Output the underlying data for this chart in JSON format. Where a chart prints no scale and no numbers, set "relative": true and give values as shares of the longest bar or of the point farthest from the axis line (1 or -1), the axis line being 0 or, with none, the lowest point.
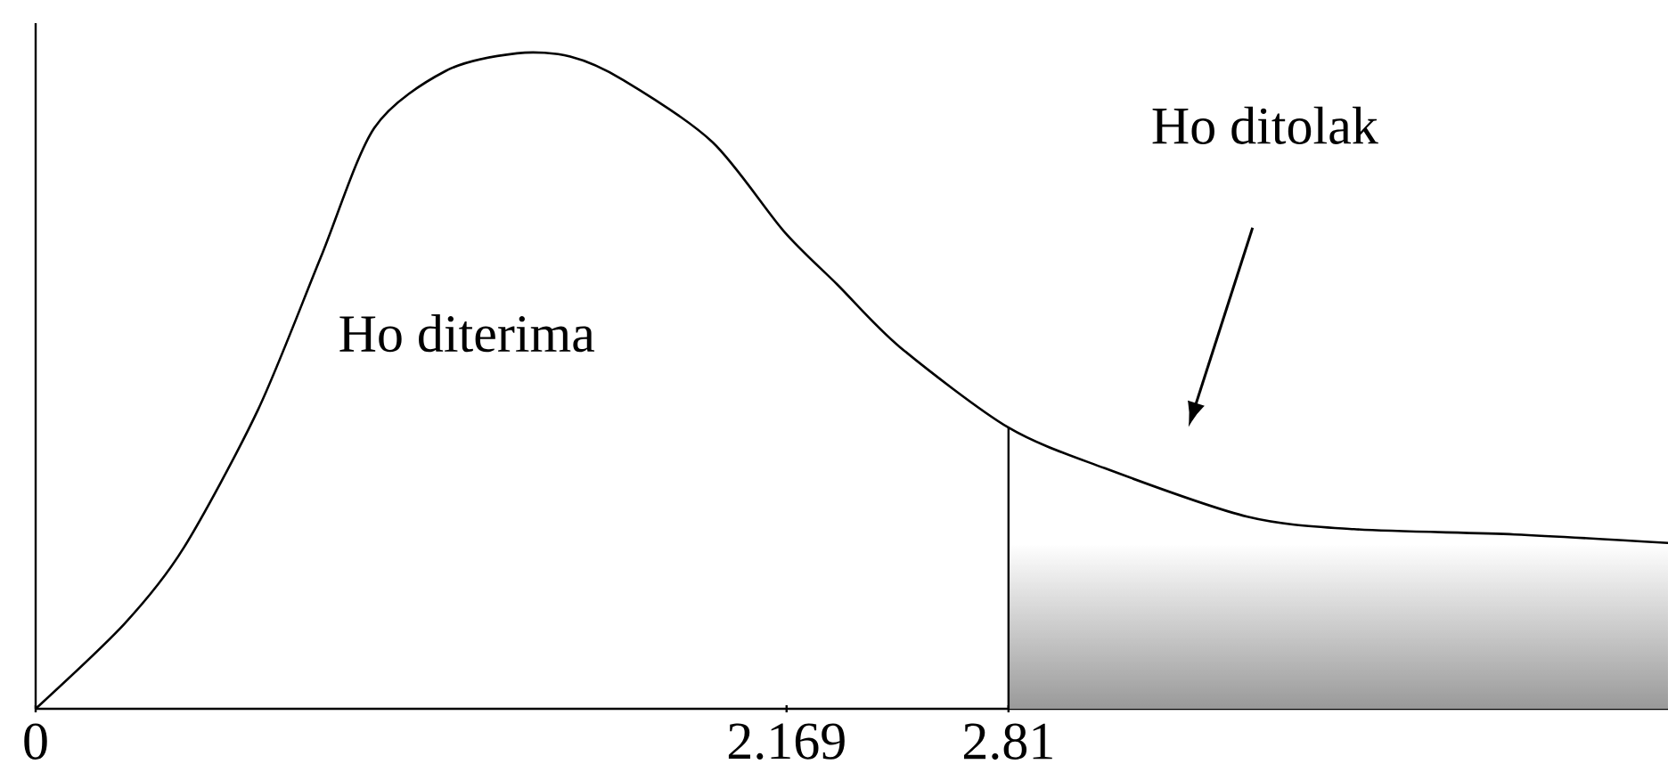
{
  "chart_data": {
    "type": "line",
    "relative": true,
    "x": [
      0,
      0.257,
      0.427,
      0.643,
      0.823,
      0.978,
      1.184,
      1.39,
      1.544,
      1.698,
      1.956,
      2.162,
      2.316,
      2.496,
      2.81,
      3.088,
      3.5,
      3.808,
      4.272,
      4.715
    ],
    "series": [
      {
        "color": "#000000",
        "values": [
          0,
          0.13,
          0.245,
          0.457,
          0.688,
          0.886,
          0.973,
          1.0,
          0.995,
          0.959,
          0.864,
          0.728,
          0.647,
          0.552,
          0.429,
          0.367,
          0.293,
          0.274,
          0.266,
          0.253
        ]
      }
    ],
    "xlim": [
      0,
      4.715
    ],
    "xticks": [
      0,
      2.169,
      2.81
    ],
    "tick_labels": "x",
    "marker": "none",
    "line_style": "solid",
    "ref_lines": [
      {
        "axis": "x",
        "value": 2.81,
        "color": "#000000"
      }
    ],
    "bands": [
      {
        "axis": "x",
        "from": 2.81,
        "to": 4.715,
        "color": "#9a9a9a"
      }
    ],
    "annotations": [
      "Ho diterima",
      "Ho ditolak"
    ]
  }
}
